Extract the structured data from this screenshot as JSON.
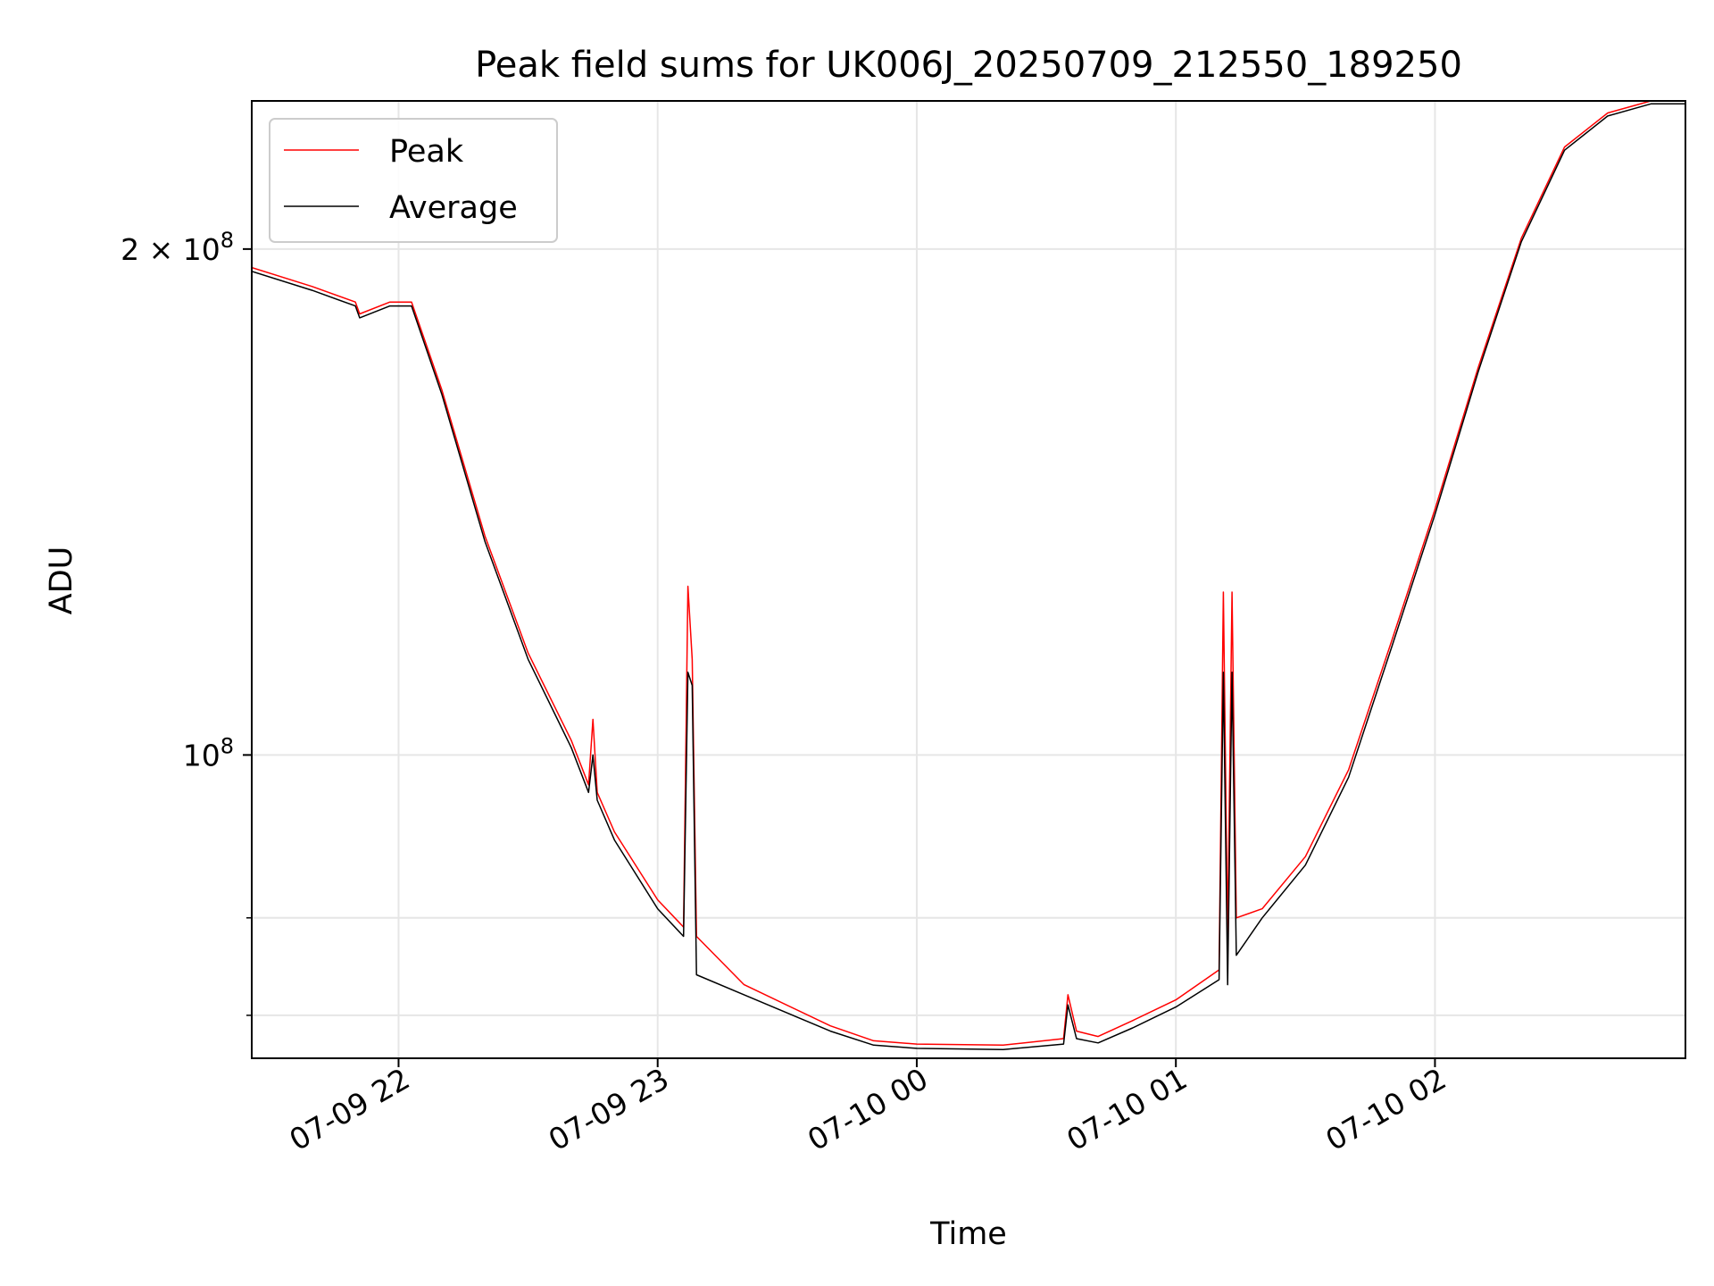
{
  "chart_data": {
    "type": "line",
    "title": "Peak field sums for UK006J_20250709_212550_189250",
    "xlabel": "Time",
    "ylabel": "ADU",
    "yscale": "log",
    "grid": true,
    "legend_placement": "top-left",
    "xlim": [
      "2025-07-09 21:26",
      "2025-07-10 02:58"
    ],
    "ylim": [
      66000000,
      245000000
    ],
    "x_ticks": [
      {
        "value": "2025-07-09 22:00",
        "label": "07-09 22"
      },
      {
        "value": "2025-07-09 23:00",
        "label": "07-09 23"
      },
      {
        "value": "2025-07-10 00:00",
        "label": "07-10 00"
      },
      {
        "value": "2025-07-10 01:00",
        "label": "07-10 01"
      },
      {
        "value": "2025-07-10 02:00",
        "label": "07-10 02"
      }
    ],
    "y_ticks": [
      {
        "value": 100000000,
        "base": "10",
        "exp": "8",
        "coef": ""
      },
      {
        "value": 200000000,
        "base": "10",
        "exp": "8",
        "coef": "2 × "
      }
    ],
    "y_minor_ticks": [
      70000000,
      80000000
    ],
    "series": [
      {
        "name": "Peak",
        "color": "#ff0000",
        "x": [
          "2025-07-09 21:26",
          "2025-07-09 21:40",
          "2025-07-09 21:50",
          "2025-07-09 21:51",
          "2025-07-09 21:58",
          "2025-07-09 22:03",
          "2025-07-09 22:10",
          "2025-07-09 22:20",
          "2025-07-09 22:30",
          "2025-07-09 22:40",
          "2025-07-09 22:44",
          "2025-07-09 22:45",
          "2025-07-09 22:46",
          "2025-07-09 22:50",
          "2025-07-09 23:00",
          "2025-07-09 23:06",
          "2025-07-09 23:07",
          "2025-07-09 23:08",
          "2025-07-09 23:09",
          "2025-07-09 23:20",
          "2025-07-09 23:40",
          "2025-07-09 23:50",
          "2025-07-10 00:00",
          "2025-07-10 00:20",
          "2025-07-10 00:34",
          "2025-07-10 00:35",
          "2025-07-10 00:37",
          "2025-07-10 00:42",
          "2025-07-10 00:50",
          "2025-07-10 01:00",
          "2025-07-10 01:10",
          "2025-07-10 01:11",
          "2025-07-10 01:12",
          "2025-07-10 01:13",
          "2025-07-10 01:14",
          "2025-07-10 01:20",
          "2025-07-10 01:30",
          "2025-07-10 01:40",
          "2025-07-10 01:50",
          "2025-07-10 02:00",
          "2025-07-10 02:10",
          "2025-07-10 02:20",
          "2025-07-10 02:30",
          "2025-07-10 02:40",
          "2025-07-10 02:50",
          "2025-07-10 02:58"
        ],
        "y": [
          195000000,
          190000000,
          186000000,
          183000000,
          186000000,
          186000000,
          165000000,
          135000000,
          115000000,
          102000000,
          96000000,
          105000000,
          95000000,
          90000000,
          82000000,
          79000000,
          126000000,
          114000000,
          78000000,
          73000000,
          69000000,
          67600000,
          67300000,
          67200000,
          67800000,
          72000000,
          68500000,
          68000000,
          69500000,
          71500000,
          74500000,
          125000000,
          78000000,
          125000000,
          80000000,
          81000000,
          87000000,
          98000000,
          117000000,
          140000000,
          170000000,
          203000000,
          230000000,
          241000000,
          245000000,
          245000000
        ]
      },
      {
        "name": "Average",
        "color": "#000000",
        "x": [
          "2025-07-09 21:26",
          "2025-07-09 21:40",
          "2025-07-09 21:50",
          "2025-07-09 21:51",
          "2025-07-09 21:58",
          "2025-07-09 22:03",
          "2025-07-09 22:10",
          "2025-07-09 22:20",
          "2025-07-09 22:30",
          "2025-07-09 22:40",
          "2025-07-09 22:44",
          "2025-07-09 22:45",
          "2025-07-09 22:46",
          "2025-07-09 22:50",
          "2025-07-09 23:00",
          "2025-07-09 23:06",
          "2025-07-09 23:07",
          "2025-07-09 23:08",
          "2025-07-09 23:09",
          "2025-07-09 23:20",
          "2025-07-09 23:40",
          "2025-07-09 23:50",
          "2025-07-10 00:00",
          "2025-07-10 00:20",
          "2025-07-10 00:34",
          "2025-07-10 00:35",
          "2025-07-10 00:37",
          "2025-07-10 00:42",
          "2025-07-10 00:50",
          "2025-07-10 01:00",
          "2025-07-10 01:10",
          "2025-07-10 01:11",
          "2025-07-10 01:12",
          "2025-07-10 01:13",
          "2025-07-10 01:14",
          "2025-07-10 01:20",
          "2025-07-10 01:30",
          "2025-07-10 01:40",
          "2025-07-10 01:50",
          "2025-07-10 02:00",
          "2025-07-10 02:10",
          "2025-07-10 02:20",
          "2025-07-10 02:30",
          "2025-07-10 02:40",
          "2025-07-10 02:50",
          "2025-07-10 02:58"
        ],
        "y": [
          194000000,
          189000000,
          185000000,
          182000000,
          185000000,
          185000000,
          164000000,
          134000000,
          114000000,
          101000000,
          95000000,
          100000000,
          94000000,
          89000000,
          81000000,
          78000000,
          112000000,
          110000000,
          74000000,
          72000000,
          68500000,
          67200000,
          66900000,
          66800000,
          67300000,
          71000000,
          67800000,
          67400000,
          68800000,
          70800000,
          73500000,
          112000000,
          73000000,
          112000000,
          76000000,
          80000000,
          86000000,
          97000000,
          116000000,
          139000000,
          169000000,
          202000000,
          229000000,
          240000000,
          244000000,
          244000000
        ]
      }
    ]
  }
}
